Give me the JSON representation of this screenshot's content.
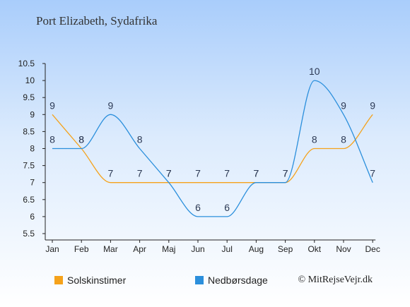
{
  "title": "Port Elizabeth, Sydafrika",
  "credit": "© MitRejseVejr.dk",
  "chart_data": {
    "type": "line",
    "title": "Port Elizabeth, Sydafrika",
    "categories": [
      "Jan",
      "Feb",
      "Mar",
      "Apr",
      "Maj",
      "Jun",
      "Jul",
      "Aug",
      "Sep",
      "Okt",
      "Nov",
      "Dec"
    ],
    "series": [
      {
        "name": "Solskinstimer",
        "color": "#f5a21b",
        "values": [
          9,
          8,
          7,
          7,
          7,
          7,
          7,
          7,
          7,
          8,
          8,
          9
        ]
      },
      {
        "name": "Nedbørsdage",
        "color": "#2b8fdc",
        "values": [
          8,
          8,
          9,
          8,
          7,
          6,
          6,
          7,
          7,
          10,
          9,
          7
        ]
      }
    ],
    "yticks": [
      "5.5",
      "6",
      "6.5",
      "7",
      "7.5",
      "8",
      "8.5",
      "9",
      "9.5",
      "10",
      "10.5"
    ],
    "ylim": [
      5.5,
      10.5
    ],
    "grid": false,
    "legend": "bottom"
  }
}
